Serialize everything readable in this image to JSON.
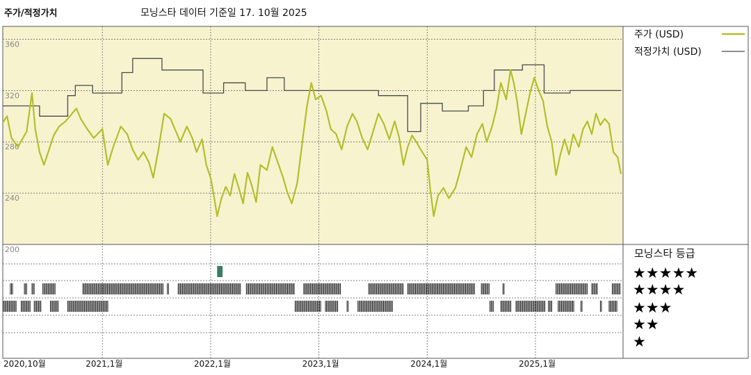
{
  "header": {
    "left_title": "주가/적정가치",
    "main_title": "모닝스타 데이터 기준일 17. 10월 2025"
  },
  "colors": {
    "price_line": "#b5bd2a",
    "fair_value_line": "#4a4a4a",
    "chart_bg": "#f7f3cf",
    "rating_bar": "#222222",
    "rating_highlight": "#3c7a66"
  },
  "legend": {
    "price_label": "주가 (USD)",
    "fair_value_label": "적정가치 (USD)"
  },
  "rating_panel": {
    "heading": "모닝스타 등급",
    "rows": [
      "★★★★★",
      "★★★★",
      "★★★",
      "★★",
      "★"
    ]
  },
  "chart_data": {
    "type": "line",
    "title": "",
    "xlabel": "",
    "ylabel": "",
    "x_range": [
      2020.08,
      2025.79
    ],
    "ylim": [
      200,
      370
    ],
    "y_ticks": [
      {
        "value": 360,
        "label": "360"
      },
      {
        "value": 320,
        "label": "320"
      },
      {
        "value": 280,
        "label": "280"
      },
      {
        "value": 240,
        "label": "240"
      },
      {
        "value": 200,
        "label": "200"
      }
    ],
    "x_ticks": [
      {
        "value": 2020.08,
        "label": "2020,10월"
      },
      {
        "value": 2021.0,
        "label": "2021,1월"
      },
      {
        "value": 2022.0,
        "label": "2022,1월"
      },
      {
        "value": 2023.0,
        "label": "2023,1월"
      },
      {
        "value": 2024.0,
        "label": "2024,1월"
      },
      {
        "value": 2025.0,
        "label": "2025,1월"
      }
    ],
    "grid": true,
    "legend_position": "top-right",
    "series": [
      {
        "name": "주가 (USD)",
        "points": [
          [
            2020.08,
            295
          ],
          [
            2020.12,
            300
          ],
          [
            2020.16,
            283
          ],
          [
            2020.22,
            276
          ],
          [
            2020.26,
            282
          ],
          [
            2020.3,
            288
          ],
          [
            2020.35,
            318
          ],
          [
            2020.38,
            290
          ],
          [
            2020.42,
            272
          ],
          [
            2020.46,
            262
          ],
          [
            2020.5,
            272
          ],
          [
            2020.55,
            285
          ],
          [
            2020.6,
            292
          ],
          [
            2020.66,
            296
          ],
          [
            2020.72,
            302
          ],
          [
            2020.76,
            306
          ],
          [
            2020.8,
            298
          ],
          [
            2020.86,
            290
          ],
          [
            2020.92,
            283
          ],
          [
            2021.0,
            290
          ],
          [
            2021.05,
            262
          ],
          [
            2021.1,
            276
          ],
          [
            2021.17,
            292
          ],
          [
            2021.23,
            286
          ],
          [
            2021.28,
            274
          ],
          [
            2021.33,
            266
          ],
          [
            2021.38,
            272
          ],
          [
            2021.43,
            264
          ],
          [
            2021.47,
            252
          ],
          [
            2021.52,
            275
          ],
          [
            2021.57,
            302
          ],
          [
            2021.63,
            298
          ],
          [
            2021.67,
            290
          ],
          [
            2021.72,
            280
          ],
          [
            2021.78,
            292
          ],
          [
            2021.83,
            283
          ],
          [
            2021.87,
            272
          ],
          [
            2021.92,
            282
          ],
          [
            2021.96,
            262
          ],
          [
            2022.0,
            252
          ],
          [
            2022.03,
            238
          ],
          [
            2022.06,
            222
          ],
          [
            2022.1,
            236
          ],
          [
            2022.14,
            245
          ],
          [
            2022.18,
            238
          ],
          [
            2022.22,
            255
          ],
          [
            2022.26,
            244
          ],
          [
            2022.3,
            232
          ],
          [
            2022.34,
            256
          ],
          [
            2022.38,
            246
          ],
          [
            2022.42,
            233
          ],
          [
            2022.46,
            262
          ],
          [
            2022.52,
            258
          ],
          [
            2022.57,
            276
          ],
          [
            2022.62,
            264
          ],
          [
            2022.67,
            252
          ],
          [
            2022.71,
            240
          ],
          [
            2022.75,
            232
          ],
          [
            2022.8,
            248
          ],
          [
            2022.85,
            282
          ],
          [
            2022.89,
            308
          ],
          [
            2022.93,
            326
          ],
          [
            2022.97,
            313
          ],
          [
            2023.02,
            316
          ],
          [
            2023.07,
            304
          ],
          [
            2023.11,
            290
          ],
          [
            2023.16,
            286
          ],
          [
            2023.21,
            274
          ],
          [
            2023.26,
            292
          ],
          [
            2023.31,
            302
          ],
          [
            2023.35,
            296
          ],
          [
            2023.4,
            283
          ],
          [
            2023.45,
            274
          ],
          [
            2023.5,
            288
          ],
          [
            2023.55,
            302
          ],
          [
            2023.6,
            294
          ],
          [
            2023.65,
            282
          ],
          [
            2023.7,
            296
          ],
          [
            2023.74,
            284
          ],
          [
            2023.78,
            262
          ],
          [
            2023.82,
            276
          ],
          [
            2023.86,
            285
          ],
          [
            2023.9,
            280
          ],
          [
            2023.94,
            274
          ],
          [
            2024.0,
            266
          ],
          [
            2024.03,
            242
          ],
          [
            2024.06,
            222
          ],
          [
            2024.1,
            238
          ],
          [
            2024.15,
            244
          ],
          [
            2024.2,
            236
          ],
          [
            2024.26,
            244
          ],
          [
            2024.3,
            256
          ],
          [
            2024.36,
            276
          ],
          [
            2024.41,
            268
          ],
          [
            2024.46,
            286
          ],
          [
            2024.51,
            294
          ],
          [
            2024.55,
            280
          ],
          [
            2024.6,
            292
          ],
          [
            2024.64,
            306
          ],
          [
            2024.68,
            326
          ],
          [
            2024.73,
            313
          ],
          [
            2024.77,
            336
          ],
          [
            2024.8,
            326
          ],
          [
            2024.83,
            312
          ],
          [
            2024.87,
            286
          ],
          [
            2024.91,
            302
          ],
          [
            2024.95,
            318
          ],
          [
            2024.99,
            330
          ],
          [
            2025.03,
            320
          ],
          [
            2025.07,
            312
          ],
          [
            2025.11,
            292
          ],
          [
            2025.15,
            280
          ],
          [
            2025.19,
            254
          ],
          [
            2025.23,
            270
          ],
          [
            2025.27,
            282
          ],
          [
            2025.31,
            270
          ],
          [
            2025.35,
            286
          ],
          [
            2025.4,
            276
          ],
          [
            2025.44,
            290
          ],
          [
            2025.48,
            296
          ],
          [
            2025.52,
            286
          ],
          [
            2025.56,
            302
          ],
          [
            2025.6,
            293
          ],
          [
            2025.64,
            298
          ],
          [
            2025.68,
            294
          ],
          [
            2025.72,
            272
          ],
          [
            2025.76,
            268
          ],
          [
            2025.79,
            255
          ]
        ]
      },
      {
        "name": "적정가치 (USD)",
        "points": [
          [
            2020.08,
            308
          ],
          [
            2020.42,
            308
          ],
          [
            2020.42,
            300
          ],
          [
            2020.68,
            300
          ],
          [
            2020.68,
            316
          ],
          [
            2020.75,
            316
          ],
          [
            2020.75,
            324
          ],
          [
            2020.91,
            324
          ],
          [
            2020.91,
            318
          ],
          [
            2021.18,
            318
          ],
          [
            2021.18,
            334
          ],
          [
            2021.28,
            334
          ],
          [
            2021.28,
            345
          ],
          [
            2021.55,
            345
          ],
          [
            2021.55,
            336
          ],
          [
            2021.93,
            336
          ],
          [
            2021.93,
            318
          ],
          [
            2022.12,
            318
          ],
          [
            2022.12,
            326
          ],
          [
            2022.32,
            326
          ],
          [
            2022.32,
            320
          ],
          [
            2022.52,
            320
          ],
          [
            2022.52,
            330
          ],
          [
            2022.68,
            330
          ],
          [
            2022.68,
            320
          ],
          [
            2023.55,
            320
          ],
          [
            2023.55,
            316
          ],
          [
            2023.82,
            316
          ],
          [
            2023.82,
            288
          ],
          [
            2023.94,
            288
          ],
          [
            2023.94,
            310
          ],
          [
            2024.14,
            310
          ],
          [
            2024.14,
            304
          ],
          [
            2024.38,
            304
          ],
          [
            2024.38,
            308
          ],
          [
            2024.52,
            308
          ],
          [
            2024.52,
            320
          ],
          [
            2024.62,
            320
          ],
          [
            2024.62,
            336
          ],
          [
            2024.88,
            336
          ],
          [
            2024.88,
            340
          ],
          [
            2025.08,
            340
          ],
          [
            2025.08,
            318
          ],
          [
            2025.32,
            318
          ],
          [
            2025.32,
            320
          ],
          [
            2025.79,
            320
          ]
        ]
      }
    ],
    "rating_history": {
      "highlight": {
        "stars": 5,
        "periods": [
          [
            2022.06,
            2022.11
          ]
        ]
      },
      "rows": [
        {
          "stars": 4,
          "periods": [
            [
              2020.15,
              2020.18
            ],
            [
              2020.28,
              2020.31
            ],
            [
              2020.35,
              2020.38
            ],
            [
              2020.45,
              2020.57
            ],
            [
              2020.82,
              2021.56
            ],
            [
              2021.6,
              2021.62
            ],
            [
              2021.7,
              2022.28
            ],
            [
              2022.33,
              2022.78
            ],
            [
              2022.86,
              2023.2
            ],
            [
              2023.46,
              2023.78
            ],
            [
              2023.82,
              2024.44
            ],
            [
              2024.5,
              2024.58
            ],
            [
              2024.7,
              2024.72
            ],
            [
              2025.19,
              2025.48
            ],
            [
              2025.52,
              2025.58
            ],
            [
              2025.71,
              2025.79
            ]
          ]
        },
        {
          "stars": 3,
          "periods": [
            [
              2020.08,
              2020.21
            ],
            [
              2020.25,
              2020.34
            ],
            [
              2020.37,
              2020.44
            ],
            [
              2020.52,
              2020.6
            ],
            [
              2020.68,
              2021.05
            ],
            [
              2022.78,
              2023.02
            ],
            [
              2023.06,
              2023.18
            ],
            [
              2023.26,
              2023.28
            ],
            [
              2023.36,
              2023.68
            ],
            [
              2024.58,
              2024.62
            ],
            [
              2024.68,
              2024.78
            ],
            [
              2024.82,
              2025.09
            ],
            [
              2025.12,
              2025.16
            ],
            [
              2025.21,
              2025.36
            ],
            [
              2025.42,
              2025.44
            ],
            [
              2025.6,
              2025.62
            ],
            [
              2025.68,
              2025.76
            ]
          ]
        }
      ]
    }
  }
}
